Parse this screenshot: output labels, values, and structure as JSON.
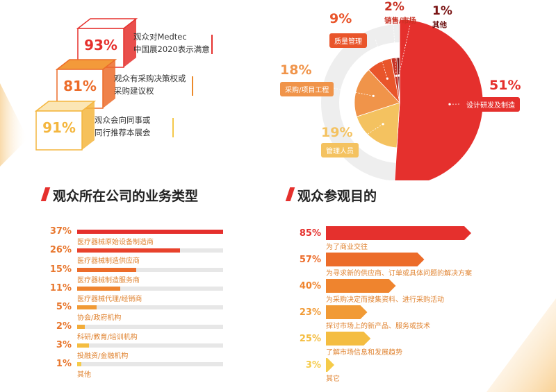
{
  "colors": {
    "red": "#e5302d",
    "orange": "#ec6c2a",
    "amber": "#f0a23c",
    "yellow": "#f4c84a",
    "darkred": "#7a1414",
    "grey": "#e7e7e7"
  },
  "satisfaction": [
    {
      "pct": "93%",
      "lines": [
        "观众对Medtec",
        "中国展2020表示满意"
      ],
      "color": "#e5302d",
      "top": "#ffffff",
      "line": "#e5302d"
    },
    {
      "pct": "81%",
      "lines": [
        "观众有采购决策权或",
        "采购建议权"
      ],
      "color": "#ec6c2a",
      "top": "#f39a3a",
      "line": "#ec8a2a"
    },
    {
      "pct": "91%",
      "lines": [
        "观众会向同事或",
        "同行推荐本展会"
      ],
      "color": "#f4b63e",
      "top": "#fbe6b5",
      "line": "#f4c84a"
    }
  ],
  "pie_labels": {
    "design": {
      "pct": "51%",
      "label": "设计研发及制造"
    },
    "mgmt": {
      "pct": "19%",
      "label": "管理人员"
    },
    "purchase": {
      "pct": "18%",
      "label": "采购/项目工程"
    },
    "quality": {
      "pct": "9%",
      "label": "质量管理"
    },
    "sales": {
      "pct": "2%",
      "label": "销售/市场"
    },
    "other": {
      "pct": "1%",
      "label": "其他"
    }
  },
  "section_business": {
    "title": "观众所在公司的业务类型"
  },
  "section_purpose": {
    "title": "观众参观目的"
  },
  "business_items": [
    {
      "pct": "37%",
      "label": "医疗器械原始设备制造商"
    },
    {
      "pct": "26%",
      "label": "医疗器械制造供应商"
    },
    {
      "pct": "15%",
      "label": "医疗器械制造服务商"
    },
    {
      "pct": "11%",
      "label": "医疗器械代理/经销商"
    },
    {
      "pct": "5%",
      "label": "协会/政府机构"
    },
    {
      "pct": "2%",
      "label": "科研/教育/培训机构"
    },
    {
      "pct": "3%",
      "label": "投融资/金融机构"
    },
    {
      "pct": "1%",
      "label": "其他"
    }
  ],
  "purpose_items": [
    {
      "pct": "85%",
      "label": "为了商业交往"
    },
    {
      "pct": "57%",
      "label": "为寻求新的供应商、订单或具体问题的解决方案"
    },
    {
      "pct": "40%",
      "label": "为采购决定而搜集资料、进行采购活动"
    },
    {
      "pct": "23%",
      "label": "探讨市场上的新产品、服务或技术"
    },
    {
      "pct": "25%",
      "label": "了解市场信息和发展趋势"
    },
    {
      "pct": "3%",
      "label": "其它"
    }
  ],
  "chart_data": [
    {
      "type": "pie",
      "categories": [
        "设计研发及制造",
        "管理人员",
        "采购/项目工程",
        "质量管理",
        "销售/市场",
        "其他"
      ],
      "values": [
        51,
        19,
        18,
        9,
        2,
        1
      ],
      "colors": [
        "#e5302d",
        "#f4c260",
        "#f0944a",
        "#e9552b",
        "#c83224",
        "#7a1414"
      ]
    },
    {
      "type": "bar",
      "title": "观众所在公司的业务类型",
      "categories": [
        "医疗器械原始设备制造商",
        "医疗器械制造供应商",
        "医疗器械制造服务商",
        "医疗器械代理/经销商",
        "协会/政府机构",
        "科研/教育/培训机构",
        "投融资/金融机构",
        "其他"
      ],
      "values": [
        37,
        26,
        15,
        11,
        5,
        2,
        3,
        1
      ],
      "colors": [
        "#e5302d",
        "#e8422c",
        "#ec6c2a",
        "#ef842e",
        "#f19a35",
        "#f2ac3a",
        "#f4bd41",
        "#f5cb4a"
      ],
      "xlim": [
        0,
        37
      ]
    },
    {
      "type": "bar",
      "title": "观众参观目的",
      "categories": [
        "为了商业交往",
        "为寻求新的供应商、订单或具体问题的解决方案",
        "为采购决定而搜集资料、进行采购活动",
        "探讨市场上的新产品、服务或技术",
        "了解市场信息和发展趋势",
        "其它"
      ],
      "values": [
        85,
        57,
        40,
        23,
        25,
        3
      ],
      "colors": [
        "#e5302d",
        "#ec6c2a",
        "#ef842e",
        "#f19a35",
        "#f4bd41",
        "#f5cb4a"
      ],
      "xlim": [
        0,
        85
      ]
    }
  ]
}
